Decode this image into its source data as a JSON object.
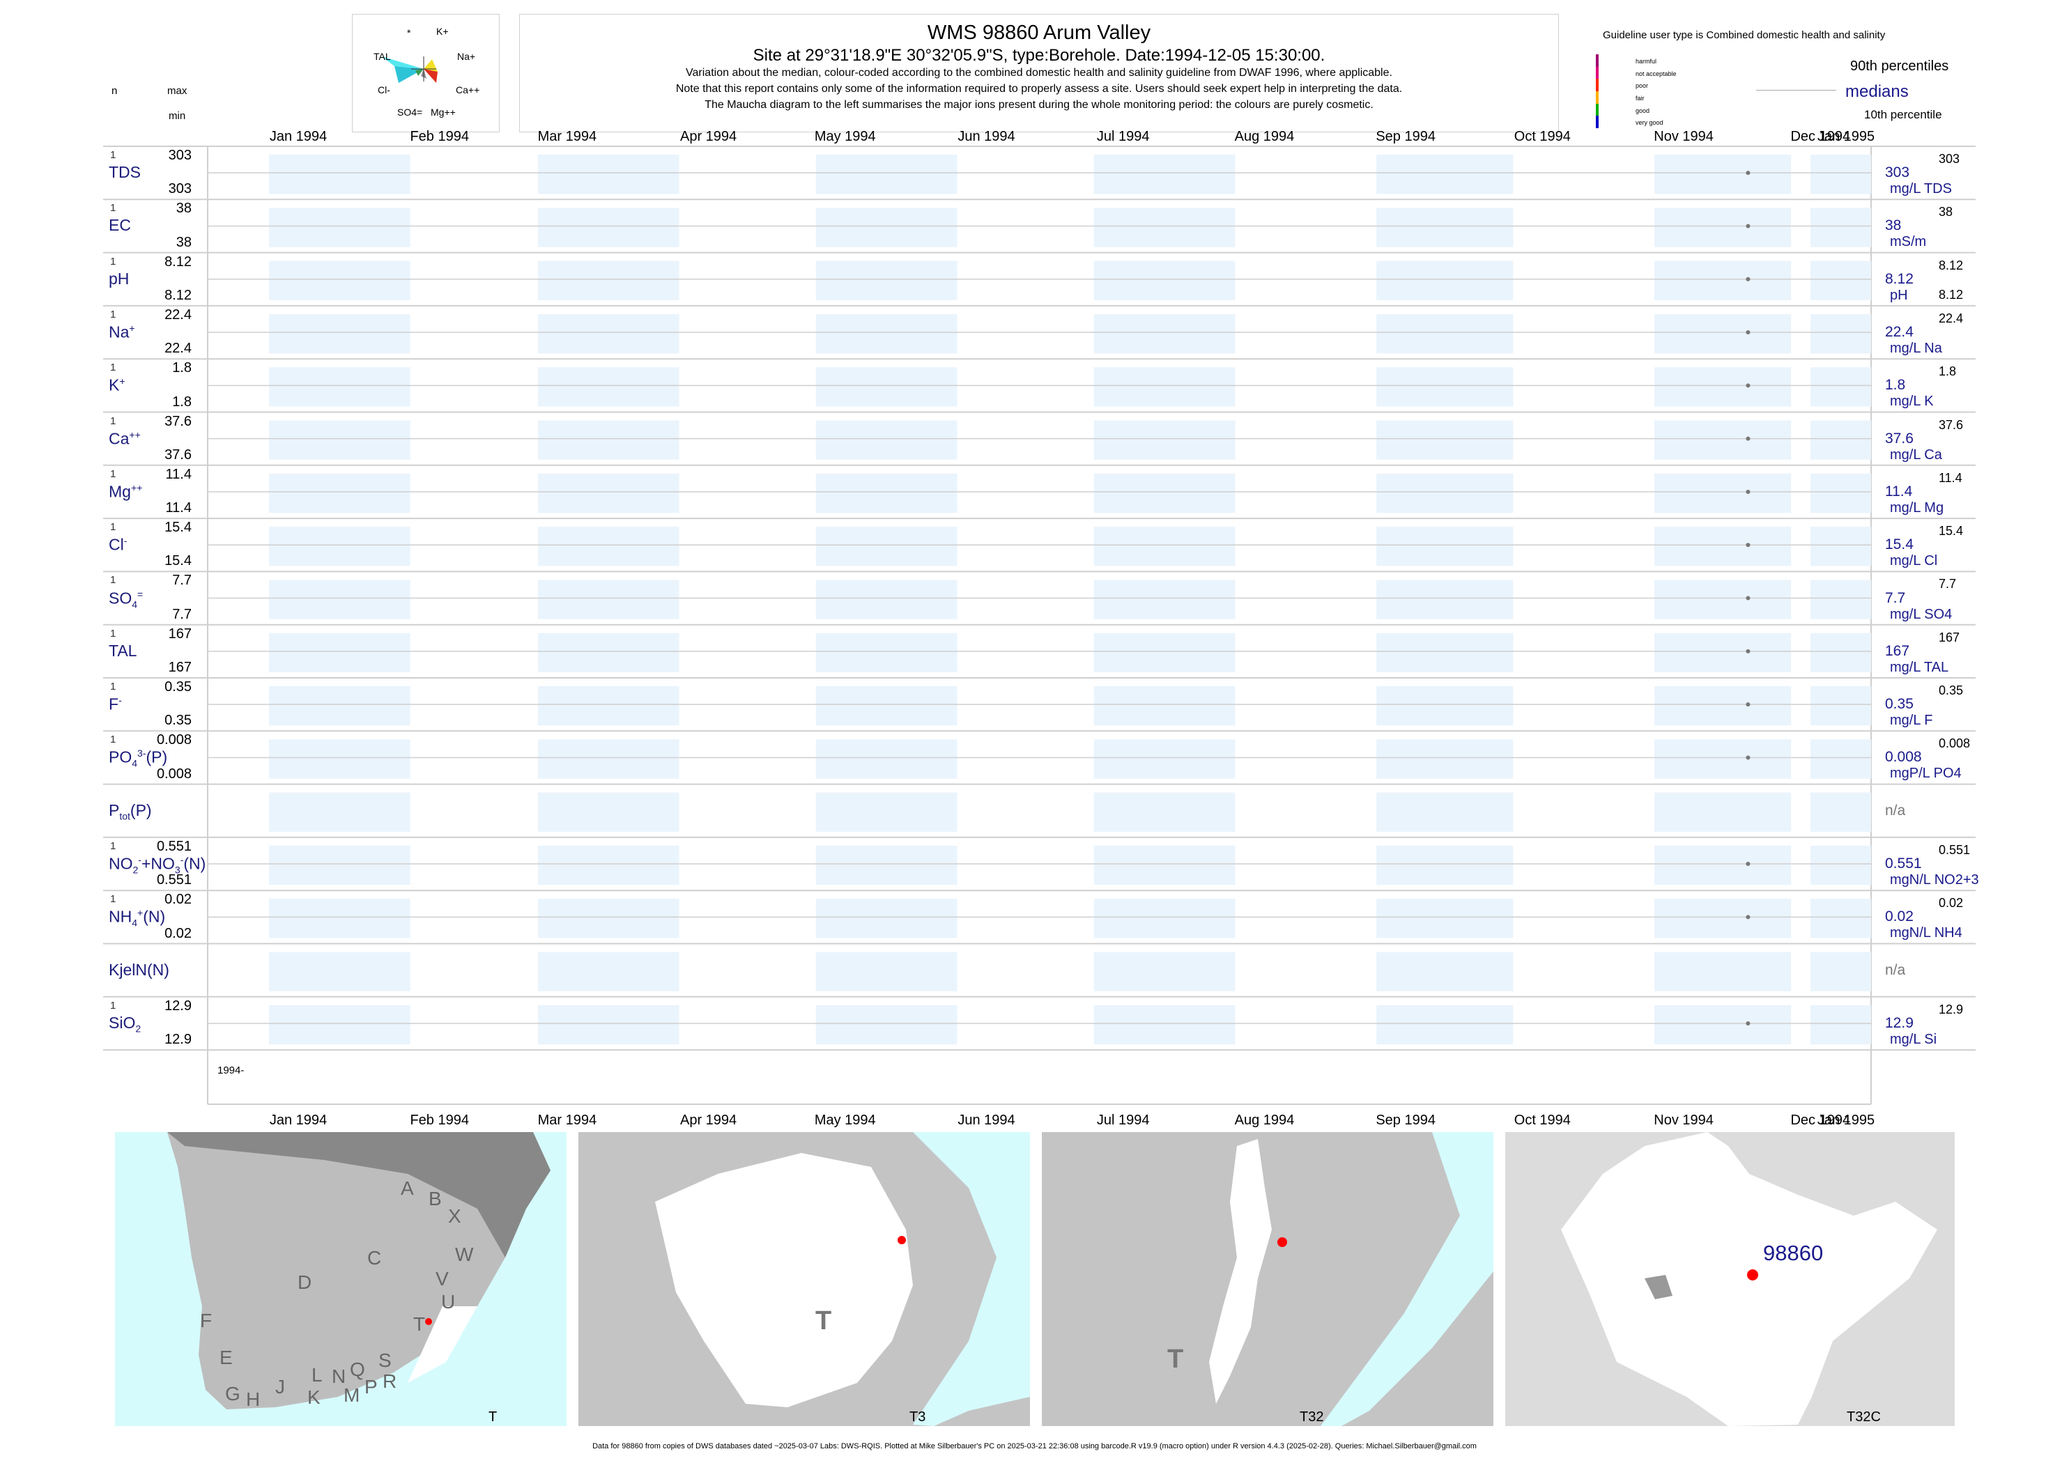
{
  "header": {
    "title": "WMS 98860  Arum Valley",
    "subtitle": "Site at 29°31'18.9\"E 30°32'05.9\"S, type:Borehole. Date:1994-12-05 15:30:00.",
    "note1": "Variation about the median,  colour-coded according to the combined domestic health and salinity guideline from DWAF 1996, where applicable.",
    "note2": "Note that this report contains only some of the information required to properly assess a site. Users should seek expert help in interpreting the data.",
    "note3": "The Maucha diagram to the left summarises the major ions present during the whole monitoring period: the colours are purely cosmetic."
  },
  "maucha": {
    "labels": {
      "star": "*",
      "k": "K+",
      "tal": "TAL",
      "na": "Na+",
      "cl": "Cl-",
      "ca": "Ca++",
      "so4": "SO4=",
      "mg": "Mg++"
    }
  },
  "legend": {
    "title": "Guideline user type is Combined domestic health and salinity",
    "items": [
      {
        "label": "harmful",
        "color": "#a0006e"
      },
      {
        "label": "not acceptable",
        "color": "#e0007a"
      },
      {
        "label": "poor",
        "color": "#ff2a00"
      },
      {
        "label": "fair",
        "color": "#ffb000"
      },
      {
        "label": "good",
        "color": "#00b000"
      },
      {
        "label": "very good",
        "color": "#0000c8"
      }
    ],
    "p90": "90th percentiles",
    "medians": "medians",
    "p10": "10th percentile"
  },
  "columns": {
    "n": "n",
    "max": "max",
    "min": "min"
  },
  "chart_data": {
    "type": "scatter",
    "x_axis": {
      "range": [
        "1994-01-01",
        "1995-01-01"
      ],
      "ticks": [
        "Jan 1994",
        "Feb 1994",
        "Mar 1994",
        "Apr 1994",
        "May 1994",
        "Jun 1994",
        "Jul 1994",
        "Aug 1994",
        "Sep 1994",
        "Oct 1994",
        "Nov 1994",
        "Dec 1994",
        "Jan 1995"
      ],
      "year_label": "1994-"
    },
    "sample_date": "1994-12-05",
    "series": [
      {
        "name": "TDS",
        "n": "1",
        "max": "303",
        "min": "303",
        "median": "303",
        "unit": "mg/L TDS",
        "p90": "303",
        "p10": ""
      },
      {
        "name": "EC",
        "n": "1",
        "max": "38",
        "min": "38",
        "median": "38",
        "unit": "mS/m",
        "p90": "38",
        "p10": ""
      },
      {
        "name": "pH",
        "n": "1",
        "max": "8.12",
        "min": "8.12",
        "median": "8.12",
        "unit": "pH",
        "p90": "8.12",
        "p10": "8.12"
      },
      {
        "name": "Na+",
        "n": "1",
        "max": "22.4",
        "min": "22.4",
        "median": "22.4",
        "unit": "mg/L Na",
        "p90": "22.4",
        "p10": ""
      },
      {
        "name": "K+",
        "n": "1",
        "max": "1.8",
        "min": "1.8",
        "median": "1.8",
        "unit": "mg/L K",
        "p90": "1.8",
        "p10": ""
      },
      {
        "name": "Ca++",
        "n": "1",
        "max": "37.6",
        "min": "37.6",
        "median": "37.6",
        "unit": "mg/L Ca",
        "p90": "37.6",
        "p10": ""
      },
      {
        "name": "Mg++",
        "n": "1",
        "max": "11.4",
        "min": "11.4",
        "median": "11.4",
        "unit": "mg/L Mg",
        "p90": "11.4",
        "p10": ""
      },
      {
        "name": "Cl-",
        "n": "1",
        "max": "15.4",
        "min": "15.4",
        "median": "15.4",
        "unit": "mg/L Cl",
        "p90": "15.4",
        "p10": ""
      },
      {
        "name": "SO4=",
        "n": "1",
        "max": "7.7",
        "min": "7.7",
        "median": "7.7",
        "unit": "mg/L SO4",
        "p90": "7.7",
        "p10": ""
      },
      {
        "name": "TAL",
        "n": "1",
        "max": "167",
        "min": "167",
        "median": "167",
        "unit": "mg/L TAL",
        "p90": "167",
        "p10": ""
      },
      {
        "name": "F-",
        "n": "1",
        "max": "0.35",
        "min": "0.35",
        "median": "0.35",
        "unit": "mg/L F",
        "p90": "0.35",
        "p10": ""
      },
      {
        "name": "PO4(3-)(P)",
        "n": "1",
        "max": "0.008",
        "min": "0.008",
        "median": "0.008",
        "unit": "mgP/L PO4",
        "p90": "0.008",
        "p10": ""
      },
      {
        "name": "Ptot(P)",
        "n": "",
        "max": "",
        "min": "",
        "median": "n/a",
        "unit": "",
        "p90": "",
        "p10": ""
      },
      {
        "name": "NO2-+NO3-(N)",
        "n": "1",
        "max": "0.551",
        "min": "0.551",
        "median": "0.551",
        "unit": "mgN/L NO2+3",
        "p90": "0.551",
        "p10": ""
      },
      {
        "name": "NH4+(N)",
        "n": "1",
        "max": "0.02",
        "min": "0.02",
        "median": "0.02",
        "unit": "mgN/L NH4",
        "p90": "0.02",
        "p10": ""
      },
      {
        "name": "KjelN(N)",
        "n": "",
        "max": "",
        "min": "",
        "median": "n/a",
        "unit": "",
        "p90": "",
        "p10": ""
      },
      {
        "name": "SiO2",
        "n": "1",
        "max": "12.9",
        "min": "12.9",
        "median": "12.9",
        "unit": "mg/L Si",
        "p90": "12.9",
        "p10": ""
      }
    ]
  },
  "maps": [
    {
      "caption": "T",
      "letters": [
        "A",
        "B",
        "X",
        "C",
        "W",
        "D",
        "V",
        "U",
        "T",
        "F",
        "E",
        "G",
        "H",
        "J",
        "K",
        "L",
        "N",
        "Q",
        "M",
        "P",
        "S",
        "R"
      ]
    },
    {
      "caption": "T3",
      "letters": [
        "T"
      ]
    },
    {
      "caption": "T32",
      "letters": [
        "T"
      ]
    },
    {
      "caption": "T32C",
      "letters": [],
      "site_label": "98860"
    }
  ],
  "colors": {
    "band": "#eaf4fd",
    "label": "#1a1a8c",
    "sea": "#d6fbfd",
    "land": "#bdbdbd",
    "dark": "#888888",
    "site": "#ff0000"
  },
  "footer": "Data for 98860 from copies of DWS databases dated ~2025-03-07 Labs: DWS-RQIS. Plotted at Mike Silberbauer's PC on 2025-03-21 22:36:08 using barcode.R v19.9 (macro option) under R version 4.4.3 (2025-02-28). Queries: Michael.Silberbauer@gmail.com"
}
